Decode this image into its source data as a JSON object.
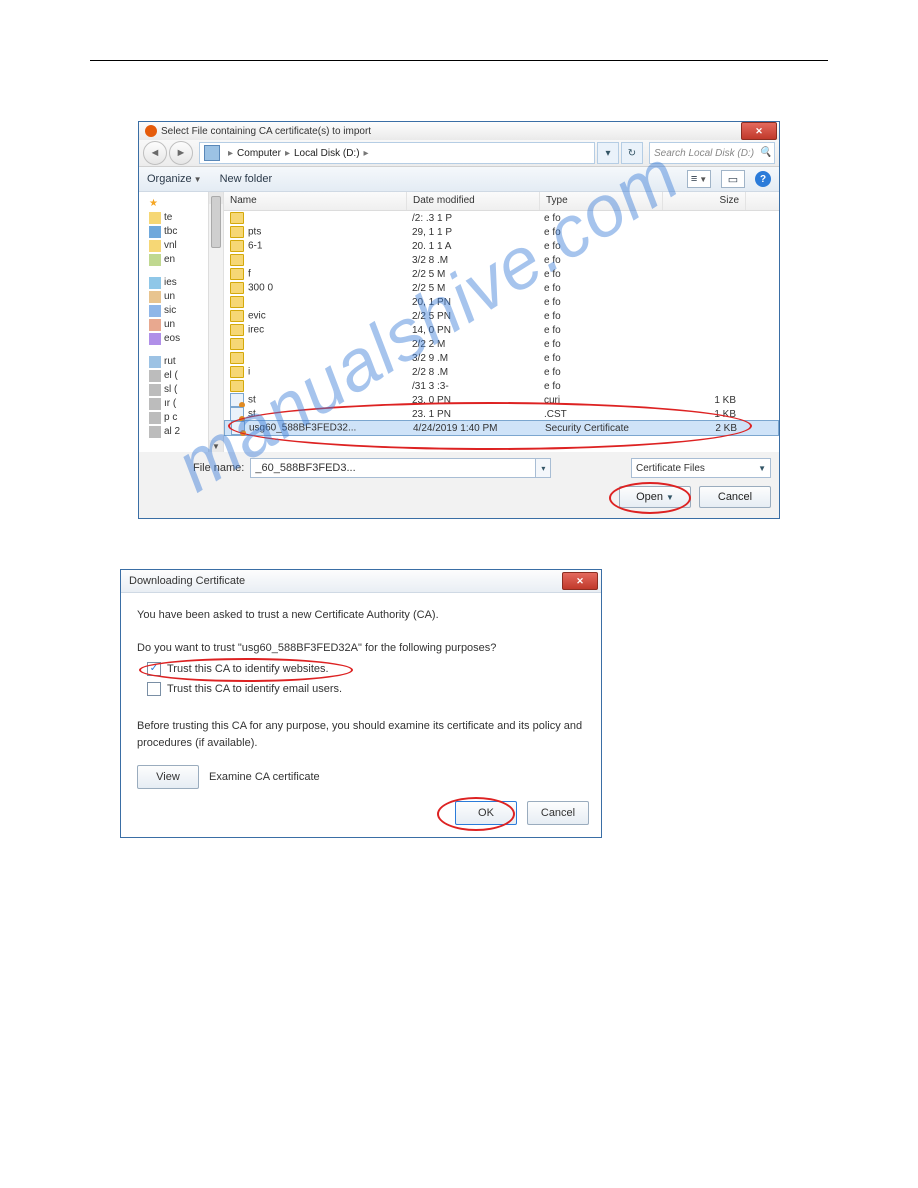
{
  "watermark": "manualshive.com",
  "filedlg": {
    "title": "Select File containing CA certificate(s) to import",
    "breadcrumb": {
      "l1": "Computer",
      "l2": "Local Disk (D:)"
    },
    "search_placeholder": "Search Local Disk (D:)",
    "organize": "Organize",
    "newfolder": "New folder",
    "headers": {
      "name": "Name",
      "date": "Date modified",
      "type": "Type",
      "size": "Size"
    },
    "nav": {
      "fav": [
        "te",
        "tbc",
        "vnl",
        "en"
      ],
      "lib": [
        "ies",
        "un",
        "sic",
        "un",
        "eos"
      ],
      "net": [
        "rut",
        "el (",
        "sl (",
        "ır (",
        "p   c",
        "al   2"
      ]
    },
    "rows": [
      {
        "icon": "folder",
        "name": "",
        "date": "/2:   .3   1 P",
        "type": "e fo",
        "size": ""
      },
      {
        "icon": "folder",
        "name": "pts",
        "date": "29,   1   1 P",
        "type": "e fo",
        "size": ""
      },
      {
        "icon": "folder",
        "name": "6-1",
        "date": "20.   1   1 A",
        "type": "e fo",
        "size": ""
      },
      {
        "icon": "folder",
        "name": "",
        "date": "3/2   8   .M",
        "type": "e fo",
        "size": ""
      },
      {
        "icon": "folder",
        "name": "f",
        "date": "2/2   5   M",
        "type": "e fo",
        "size": ""
      },
      {
        "icon": "folder",
        "name": "300       0",
        "date": "2/2   5   M",
        "type": "e fo",
        "size": ""
      },
      {
        "icon": "folder",
        "name": "",
        "date": "20,   1   PN",
        "type": "e fo",
        "size": ""
      },
      {
        "icon": "folder",
        "name": "evic",
        "date": "2/2   5   PN",
        "type": "e fo",
        "size": ""
      },
      {
        "icon": "folder",
        "name": "irec",
        "date": "14,   0   PN",
        "type": "e fo",
        "size": ""
      },
      {
        "icon": "folder",
        "name": "",
        "date": "2/2   2   M",
        "type": "e fo",
        "size": ""
      },
      {
        "icon": "folder",
        "name": "",
        "date": "3/2   9   .M",
        "type": "e fo",
        "size": ""
      },
      {
        "icon": "folder",
        "name": "i",
        "date": "2/2   8   .M",
        "type": "e fo",
        "size": ""
      },
      {
        "icon": "folder",
        "name": "",
        "date": "/31   3   :3-",
        "type": "e fo",
        "size": ""
      },
      {
        "icon": "cert",
        "name": "st",
        "date": "23.   0   PN",
        "type": "curi",
        "size": "1 KB"
      },
      {
        "icon": "cert",
        "name": "st",
        "date": "23.   1   PN",
        "type": ".CST",
        "size": "1 KB"
      },
      {
        "icon": "cert",
        "name": "usg60_588BF3FED32...",
        "date": "4/24/2019 1:40 PM",
        "type": "Security Certificate",
        "size": "2 KB",
        "selected": true
      }
    ],
    "filename_label": "File name:",
    "filename_value": "_60_588BF3FED3...",
    "filter": "Certificate Files",
    "open": "Open",
    "cancel": "Cancel"
  },
  "certdlg": {
    "title": "Downloading Certificate",
    "line1": "You have been asked to trust a new Certificate Authority (CA).",
    "line2_a": "Do you want to trust \"",
    "line2_cert": "usg60_588BF3FED32A",
    "line2_b": "\" for the following purposes?",
    "chk1": "Trust this CA to identify websites.",
    "chk2": "Trust this CA to identify email users.",
    "para": "Before trusting this CA for any purpose, you should examine its certificate and its policy and procedures (if available).",
    "view": "View",
    "examine": "Examine CA certificate",
    "ok": "OK",
    "cancel": "Cancel"
  }
}
